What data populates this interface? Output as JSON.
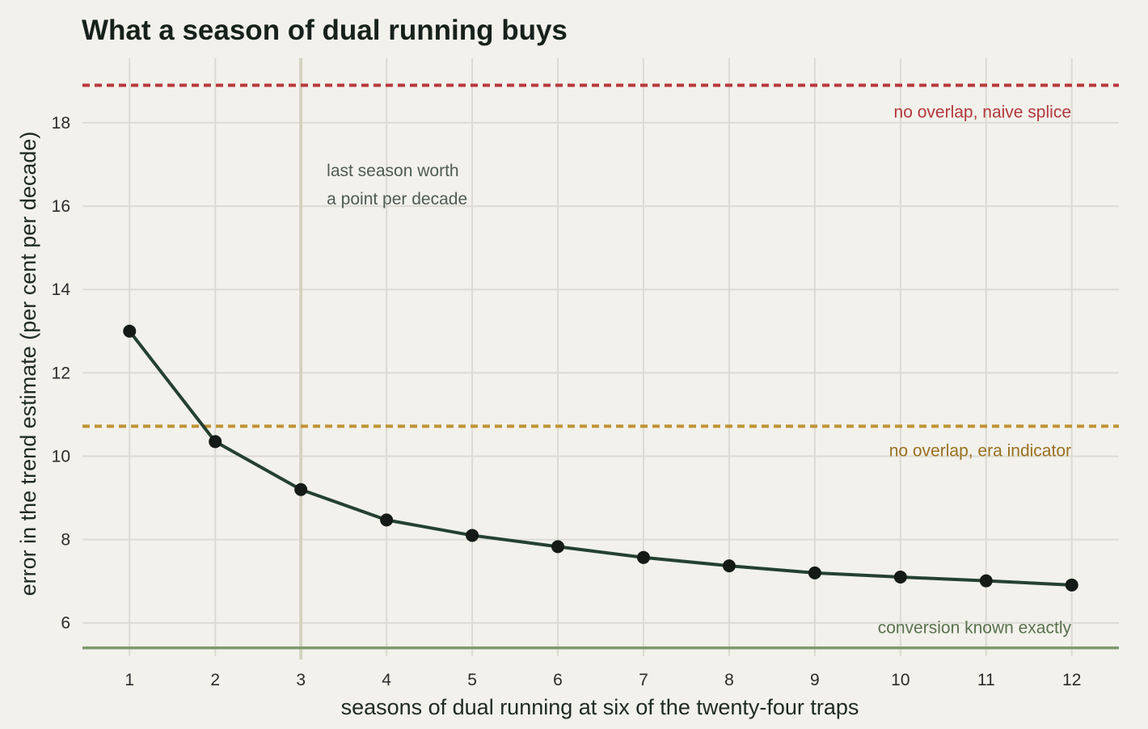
{
  "chart_data": {
    "type": "line",
    "title": "What a season of dual running buys",
    "xlabel": "seasons of dual running at six of the twenty-four traps",
    "ylabel": "error in the trend estimate (per cent per decade)",
    "xlim": [
      0.45,
      12.55
    ],
    "ylim": [
      5.2,
      19.55
    ],
    "x_ticks": [
      1,
      2,
      3,
      4,
      5,
      6,
      7,
      8,
      9,
      10,
      11,
      12
    ],
    "y_ticks": [
      6,
      8,
      10,
      12,
      14,
      16,
      18
    ],
    "grid": true,
    "series": [
      {
        "x": [
          1,
          2,
          3,
          4,
          5,
          6,
          7,
          8,
          9,
          10,
          11,
          12
        ],
        "values": [
          13.0,
          10.35,
          9.2,
          8.47,
          8.1,
          7.83,
          7.57,
          7.37,
          7.2,
          7.1,
          7.01,
          6.91
        ],
        "color": "#24412f"
      }
    ],
    "reference_lines": [
      {
        "y": 18.9,
        "label": "no overlap, naive splice",
        "style": "dotted",
        "color": "#b8383c",
        "label_color": "#b2383c"
      },
      {
        "y": 10.72,
        "label": "no overlap, era indicator",
        "style": "dotted",
        "color": "#bf9435",
        "label_color": "#9a7020"
      },
      {
        "y": 5.4,
        "label": "conversion known exactly",
        "style": "solid",
        "color": "#7d9a6c",
        "label_color": "#5a7150"
      }
    ],
    "vertical_marker": {
      "x": 3,
      "label_lines": [
        "last season worth",
        "a point per decade"
      ],
      "color": "#d3d2c0",
      "label_color": "#4f5b54"
    }
  }
}
